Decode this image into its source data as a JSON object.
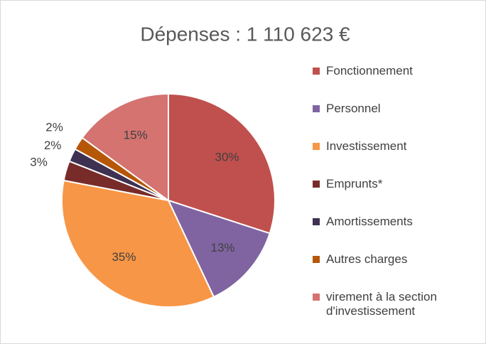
{
  "chart_data": {
    "type": "pie",
    "title": "Dépenses :  1 110 623 €",
    "categories": [
      "Fonctionnement",
      "Personnel",
      "Investissement",
      "Emprunts*",
      "Amortissements",
      "Autres charges",
      "virement à la section d'investissement"
    ],
    "values": [
      30,
      13,
      35,
      3,
      2,
      2,
      15
    ],
    "value_labels": [
      "30%",
      "13%",
      "35%",
      "3%",
      "2%",
      "2%",
      "15%"
    ],
    "colors": [
      "#c0504d",
      "#8064a2",
      "#f79646",
      "#772c2a",
      "#3f3151",
      "#b65708",
      "#d47370"
    ],
    "legend": "right"
  }
}
